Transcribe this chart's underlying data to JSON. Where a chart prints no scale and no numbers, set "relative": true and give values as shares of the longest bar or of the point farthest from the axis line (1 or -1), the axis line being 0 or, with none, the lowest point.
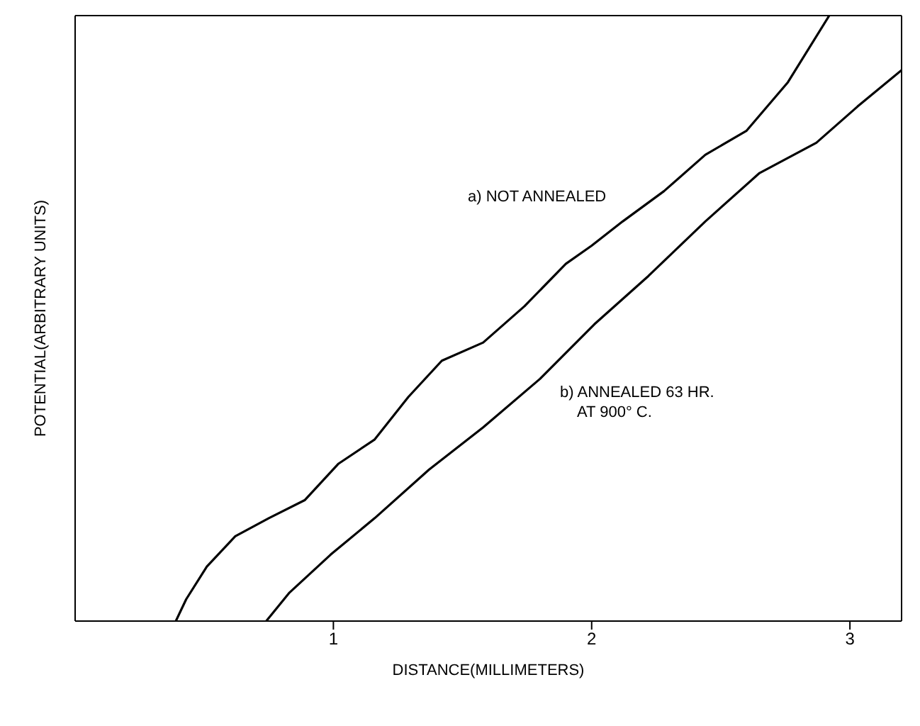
{
  "chart_data": {
    "type": "line",
    "relative": true,
    "xlabel": "DISTANCE(MILLIMETERS)",
    "ylabel": "POTENTIAL(ARBITRARY UNITS)",
    "xlim": [
      0,
      3.2
    ],
    "xticks": [
      1,
      2,
      3
    ],
    "marker": "none",
    "line_style": "solid",
    "series": [
      {
        "color": "#000000",
        "x": [
          0.39,
          0.43,
          0.51,
          0.62,
          0.75,
          0.89,
          1.02,
          1.16,
          1.29,
          1.42,
          1.58,
          1.74,
          1.9,
          2.0,
          2.12,
          2.28,
          2.44,
          2.6,
          2.76,
          2.92
        ],
        "values": [
          0,
          0.036,
          0.09,
          0.14,
          0.17,
          0.2,
          0.26,
          0.3,
          0.37,
          0.43,
          0.46,
          0.52,
          0.59,
          0.62,
          0.66,
          0.71,
          0.77,
          0.81,
          0.89,
          1.0
        ]
      },
      {
        "color": "#000000",
        "x": [
          0.74,
          0.83,
          0.99,
          1.16,
          1.37,
          1.58,
          1.8,
          2.01,
          2.22,
          2.44,
          2.65,
          2.87,
          3.03,
          3.2
        ],
        "values": [
          0,
          0.047,
          0.11,
          0.17,
          0.25,
          0.32,
          0.4,
          0.49,
          0.57,
          0.66,
          0.74,
          0.79,
          0.85,
          0.91
        ]
      }
    ],
    "annotations": [
      "a) NOT ANNEALED",
      "b) ANNEALED 63 HR.\nAT 900° C."
    ]
  }
}
